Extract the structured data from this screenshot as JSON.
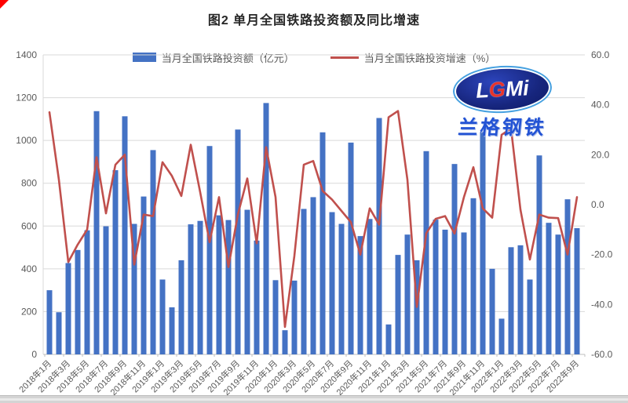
{
  "page": {
    "title": "图2 单月全国铁路投资额及同比增速"
  },
  "legend": [
    {
      "label": "当月全国铁路投资额（亿元）",
      "type": "bar",
      "color": "#4472C4"
    },
    {
      "label": "当月全国铁路投资增速（%）",
      "type": "line",
      "color": "#C0504D"
    }
  ],
  "logo": {
    "text_l": "L",
    "text_g": "G",
    "text_mi": "Mi",
    "subtext": "兰格钢铁"
  },
  "chart_data": {
    "type": "bar+line",
    "title": "图2 单月全国铁路投资额及同比增速",
    "grid": true,
    "legend_position": "top",
    "months": [
      "2018年1月",
      "2018年2月",
      "2018年3月",
      "2018年4月",
      "2018年5月",
      "2018年6月",
      "2018年7月",
      "2018年8月",
      "2018年9月",
      "2018年10月",
      "2018年11月",
      "2018年12月",
      "2019年1月",
      "2019年2月",
      "2019年3月",
      "2019年4月",
      "2019年5月",
      "2019年6月",
      "2019年7月",
      "2019年8月",
      "2019年9月",
      "2019年10月",
      "2019年11月",
      "2019年12月",
      "2020年1月",
      "2020年2月",
      "2020年3月",
      "2020年4月",
      "2020年5月",
      "2020年6月",
      "2020年7月",
      "2020年8月",
      "2020年9月",
      "2020年10月",
      "2020年11月",
      "2020年12月",
      "2021年1月",
      "2021年2月",
      "2021年3月",
      "2021年4月",
      "2021年5月",
      "2021年6月",
      "2021年7月",
      "2021年8月",
      "2021年9月",
      "2021年10月",
      "2021年11月",
      "2021年12月",
      "2022年1月",
      "2022年2月",
      "2022年3月",
      "2022年4月",
      "2022年5月",
      "2022年6月",
      "2022年7月",
      "2022年8月",
      "2022年9月"
    ],
    "x_tick_labels": [
      "2018年1月",
      "2018年3月",
      "2018年5月",
      "2018年7月",
      "2018年9月",
      "2018年11月",
      "2019年1月",
      "2019年3月",
      "2019年5月",
      "2019年7月",
      "2019年9月",
      "2019年11月",
      "2020年1月",
      "2020年3月",
      "2020年5月",
      "2020年7月",
      "2020年9月",
      "2020年11月",
      "2021年1月",
      "2021年3月",
      "2021年5月",
      "2021年7月",
      "2021年9月",
      "2021年11月",
      "2022年1月",
      "2022年3月",
      "2022年5月",
      "2022年7月",
      "2022年9月"
    ],
    "series": [
      {
        "name": "当月全国铁路投资额（亿元）",
        "type": "bar",
        "axis": "left",
        "color": "#4472C4",
        "values": [
          300,
          197,
          427,
          488,
          580,
          1137,
          599,
          861,
          1113,
          610,
          738,
          955,
          350,
          220,
          440,
          608,
          624,
          974,
          650,
          628,
          1051,
          676,
          532,
          1175,
          347,
          113,
          345,
          680,
          735,
          1038,
          665,
          610,
          990,
          553,
          633,
          1105,
          140,
          465,
          560,
          440,
          950,
          630,
          583,
          890,
          570,
          730,
          1040,
          400,
          167,
          501,
          510,
          350,
          930,
          615,
          560,
          725,
          590
        ]
      },
      {
        "name": "当月全国铁路投资增速（%）",
        "type": "line",
        "axis": "right",
        "color": "#C0504D",
        "values": [
          37,
          10,
          -23,
          -16,
          -10,
          19,
          -3.5,
          16,
          20,
          -24,
          -4,
          -4.6,
          17,
          11.5,
          3.5,
          24,
          5,
          -15,
          3,
          -25,
          -4,
          10.5,
          -15.5,
          23,
          3,
          -49,
          -20.5,
          16,
          17.5,
          5.5,
          2,
          -2.5,
          -7,
          -20,
          -1.5,
          -8,
          35,
          37.5,
          10,
          -41,
          -11.5,
          -5.7,
          -4.6,
          -11.6,
          3,
          15,
          -1.5,
          -5.2,
          28,
          30.5,
          -2,
          -22,
          -4,
          -5.2,
          -5.4,
          -20,
          3
        ]
      }
    ],
    "left_axis": {
      "label": "",
      "min": 0,
      "max": 1400,
      "ticks": [
        0,
        200,
        400,
        600,
        800,
        1000,
        1200,
        1400
      ]
    },
    "right_axis": {
      "label": "",
      "min": -60,
      "max": 60,
      "ticks": [
        "60.0",
        "40.0",
        "20.0",
        "0.0",
        "-20.0",
        "-40.0",
        "-60.0"
      ]
    }
  }
}
